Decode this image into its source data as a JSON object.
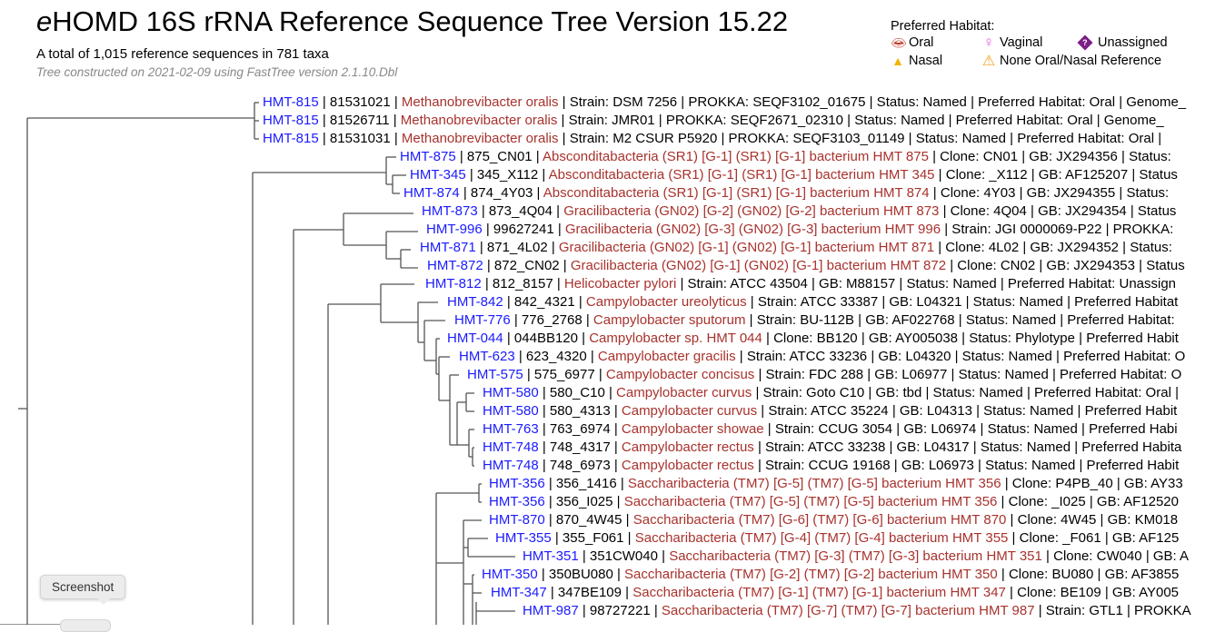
{
  "header": {
    "title_prefix": "e",
    "title_rest": "HOMD 16S rRNA Reference Sequence Tree Version 15.22",
    "subtitle": "A total of 1,015 reference sequences in 781 taxa",
    "note": "Tree constructed on 2021-02-09 using FastTree version 2.1.10.Dbl"
  },
  "legend": {
    "title": "Preferred Habitat:",
    "items": [
      {
        "icon": "lips-icon",
        "label": "Oral"
      },
      {
        "icon": "female-icon",
        "label": "Vaginal"
      },
      {
        "icon": "question-diamond-icon",
        "label": "Unassigned"
      },
      {
        "icon": "nose-icon",
        "label": "Nasal"
      },
      {
        "icon": "warning-icon",
        "label": "None Oral/Nasal Reference"
      }
    ]
  },
  "rows": [
    {
      "hmt": "HMT-815",
      "id": " | 81531021 | ",
      "name": "Methanobrevibacter oralis",
      "rest": " | Strain: DSM 7256 | PROKKA: SEQF3102_01675 | Status: Named | Preferred Habitat: Oral | Genome_"
    },
    {
      "hmt": "HMT-815",
      "id": " | 81526711 | ",
      "name": "Methanobrevibacter oralis",
      "rest": " | Strain: JMR01 | PROKKA: SEQF2671_02310 | Status: Named | Preferred Habitat: Oral | Genome_"
    },
    {
      "hmt": "HMT-815",
      "id": " | 81531031 | ",
      "name": "Methanobrevibacter oralis",
      "rest": " | Strain: M2 CSUR P5920 | PROKKA: SEQF3103_01149 | Status: Named | Preferred Habitat: Oral | "
    },
    {
      "hmt": "HMT-875",
      "id": " | 875_CN01 | ",
      "name": "Absconditabacteria (SR1) [G-1] (SR1) [G-1] bacterium HMT 875",
      "rest": " | Clone: CN01 | GB: JX294356 | Status:"
    },
    {
      "hmt": "HMT-345",
      "id": " | 345_X112 | ",
      "name": "Absconditabacteria (SR1) [G-1] (SR1) [G-1] bacterium HMT 345",
      "rest": " | Clone: _X112 | GB: AF125207 | Status"
    },
    {
      "hmt": "HMT-874",
      "id": " | 874_4Y03 | ",
      "name": "Absconditabacteria (SR1) [G-1] (SR1) [G-1] bacterium HMT 874",
      "rest": " | Clone: 4Y03 | GB: JX294355 | Status:"
    },
    {
      "hmt": "HMT-873",
      "id": " | 873_4Q04 | ",
      "name": "Gracilibacteria (GN02) [G-2] (GN02) [G-2] bacterium HMT 873",
      "rest": " | Clone: 4Q04 | GB: JX294354 | Status"
    },
    {
      "hmt": "HMT-996",
      "id": " | 99627241 | ",
      "name": "Gracilibacteria (GN02) [G-3] (GN02) [G-3] bacterium HMT 996",
      "rest": " | Strain: JGI 0000069-P22 | PROKKA:"
    },
    {
      "hmt": "HMT-871",
      "id": " | 871_4L02 | ",
      "name": "Gracilibacteria (GN02) [G-1] (GN02) [G-1] bacterium HMT 871",
      "rest": " | Clone: 4L02 | GB: JX294352 | Status:"
    },
    {
      "hmt": "HMT-872",
      "id": " | 872_CN02 | ",
      "name": "Gracilibacteria (GN02) [G-1] (GN02) [G-1] bacterium HMT 872",
      "rest": " | Clone: CN02 | GB: JX294353 | Status"
    },
    {
      "hmt": "HMT-812",
      "id": " | 812_8157 | ",
      "name": "Helicobacter pylori",
      "rest": " | Strain: ATCC 43504 | GB: M88157 | Status: Named | Preferred Habitat: Unassign"
    },
    {
      "hmt": "HMT-842",
      "id": " | 842_4321 | ",
      "name": "Campylobacter ureolyticus",
      "rest": " | Strain: ATCC 33387 | GB: L04321 | Status: Named | Preferred Habitat"
    },
    {
      "hmt": "HMT-776",
      "id": " | 776_2768 | ",
      "name": "Campylobacter sputorum",
      "rest": " | Strain: BU-112B | GB: AF022768 | Status: Named | Preferred Habitat:"
    },
    {
      "hmt": "HMT-044",
      "id": " | 044BB120 | ",
      "name": "Campylobacter sp. HMT 044",
      "rest": " | Clone: BB120 | GB: AY005038 | Status: Phylotype | Preferred Habit"
    },
    {
      "hmt": "HMT-623",
      "id": " | 623_4320 | ",
      "name": "Campylobacter gracilis",
      "rest": " | Strain: ATCC 33236 | GB: L04320 | Status: Named | Preferred Habitat: O"
    },
    {
      "hmt": "HMT-575",
      "id": " | 575_6977 | ",
      "name": "Campylobacter concisus",
      "rest": " | Strain: FDC 288 | GB: L06977 | Status: Named | Preferred Habitat: O"
    },
    {
      "hmt": "HMT-580",
      "id": " | 580_C10 | ",
      "name": "Campylobacter curvus",
      "rest": " | Strain: Goto C10 | GB: tbd | Status: Named | Preferred Habitat: Oral |"
    },
    {
      "hmt": "HMT-580",
      "id": " | 580_4313 | ",
      "name": "Campylobacter curvus",
      "rest": " | Strain: ATCC 35224 | GB: L04313 | Status: Named | Preferred Habit"
    },
    {
      "hmt": "HMT-763",
      "id": " | 763_6974 | ",
      "name": "Campylobacter showae",
      "rest": " | Strain: CCUG 3054 | GB: L06974 | Status: Named | Preferred Habi"
    },
    {
      "hmt": "HMT-748",
      "id": " | 748_4317 | ",
      "name": "Campylobacter rectus",
      "rest": " | Strain: ATCC 33238 | GB: L04317 | Status: Named | Preferred Habita"
    },
    {
      "hmt": "HMT-748",
      "id": " | 748_6973 | ",
      "name": "Campylobacter rectus",
      "rest": " | Strain: CCUG 19168 | GB: L06973 | Status: Named | Preferred Habit"
    },
    {
      "hmt": "HMT-356",
      "id": " | 356_1416 | ",
      "name": "Saccharibacteria (TM7) [G-5] (TM7) [G-5] bacterium HMT 356",
      "rest": " | Clone: P4PB_40 | GB: AY33"
    },
    {
      "hmt": "HMT-356",
      "id": " | 356_I025 | ",
      "name": "Saccharibacteria (TM7) [G-5] (TM7) [G-5] bacterium HMT 356",
      "rest": " | Clone: _I025 | GB: AF12520"
    },
    {
      "hmt": "HMT-870",
      "id": " | 870_4W45 | ",
      "name": "Saccharibacteria (TM7) [G-6] (TM7) [G-6] bacterium HMT 870",
      "rest": " | Clone: 4W45 | GB: KM018"
    },
    {
      "hmt": "HMT-355",
      "id": " | 355_F061 | ",
      "name": "Saccharibacteria (TM7) [G-4] (TM7) [G-4] bacterium HMT 355",
      "rest": " | Clone: _F061 | GB: AF125"
    },
    {
      "hmt": "HMT-351",
      "id": " | 351CW040 | ",
      "name": "Saccharibacteria (TM7) [G-3] (TM7) [G-3] bacterium HMT 351",
      "rest": " | Clone: CW040 | GB: A"
    },
    {
      "hmt": "HMT-350",
      "id": " | 350BU080 | ",
      "name": "Saccharibacteria (TM7) [G-2] (TM7) [G-2] bacterium HMT 350",
      "rest": " | Clone: BU080 | GB: AF3855"
    },
    {
      "hmt": "HMT-347",
      "id": " | 347BE109 | ",
      "name": "Saccharibacteria (TM7) [G-1] (TM7) [G-1] bacterium HMT 347",
      "rest": " | Clone: BE109 | GB: AY005"
    },
    {
      "hmt": "HMT-987",
      "id": " | 98727221 | ",
      "name": "Saccharibacteria (TM7) [G-7] (TM7) [G-7] bacterium HMT 987",
      "rest": " | Strain: GTL1 | PROKKA"
    }
  ],
  "tooltip": "Screenshot",
  "colors": {
    "link": "#1a1aff",
    "name": "#a8322d",
    "branch": "#555555"
  }
}
